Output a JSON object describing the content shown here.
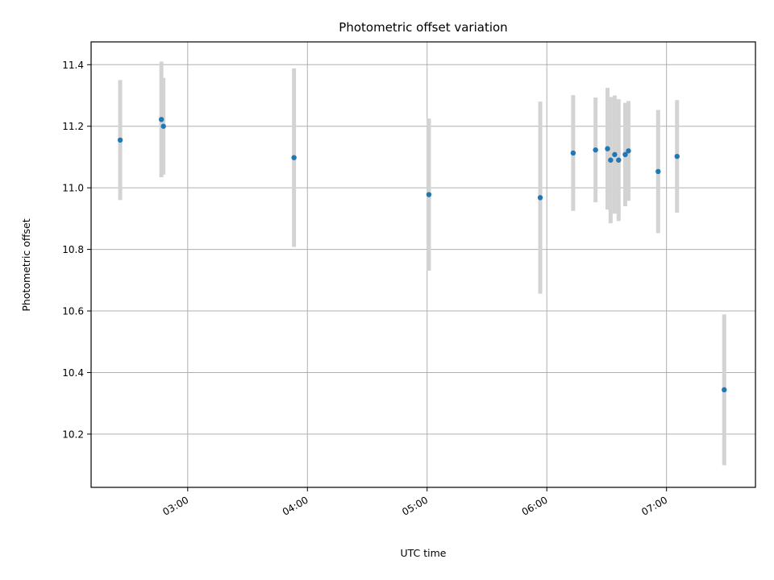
{
  "chart_data": {
    "type": "scatter",
    "title": "Photometric offset variation",
    "xlabel": "UTC time",
    "ylabel": "Photometric offset",
    "x_tick_labels": [
      "03:00",
      "04:00",
      "05:00",
      "06:00",
      "07:00"
    ],
    "x_ticks_hours": [
      3,
      4,
      5,
      6,
      7
    ],
    "y_tick_labels": [
      "10.2",
      "10.4",
      "10.6",
      "10.8",
      "11.0",
      "11.2",
      "11.4"
    ],
    "y_ticks": [
      10.2,
      10.4,
      10.6,
      10.8,
      11.0,
      11.2,
      11.4
    ],
    "xlim_hours": [
      2.193,
      7.743
    ],
    "ylim": [
      10.027,
      11.474
    ],
    "grid": true,
    "marker_color": "#1f77b4",
    "errorbar_color": "#d3d3d3",
    "series": [
      {
        "x_hours": [
          2.436,
          2.78,
          2.797,
          3.888,
          5.015,
          5.945,
          6.22,
          6.407,
          6.507,
          6.533,
          6.567,
          6.6,
          6.655,
          6.682,
          6.93,
          7.088,
          7.482
        ],
        "x": [
          "02:26",
          "02:47",
          "02:48",
          "03:53",
          "05:01",
          "05:57",
          "06:13",
          "06:24",
          "06:30",
          "06:32",
          "06:34",
          "06:36",
          "06:39",
          "06:41",
          "06:56",
          "07:05",
          "07:29"
        ],
        "y": [
          11.155,
          11.222,
          11.2,
          11.098,
          10.978,
          10.968,
          11.113,
          11.123,
          11.127,
          11.09,
          11.108,
          11.09,
          11.108,
          11.12,
          11.053,
          11.102,
          10.344
        ],
        "yerr": [
          0.195,
          0.188,
          0.157,
          0.29,
          0.247,
          0.312,
          0.188,
          0.17,
          0.198,
          0.205,
          0.192,
          0.198,
          0.168,
          0.162,
          0.2,
          0.183,
          0.245
        ]
      }
    ]
  }
}
